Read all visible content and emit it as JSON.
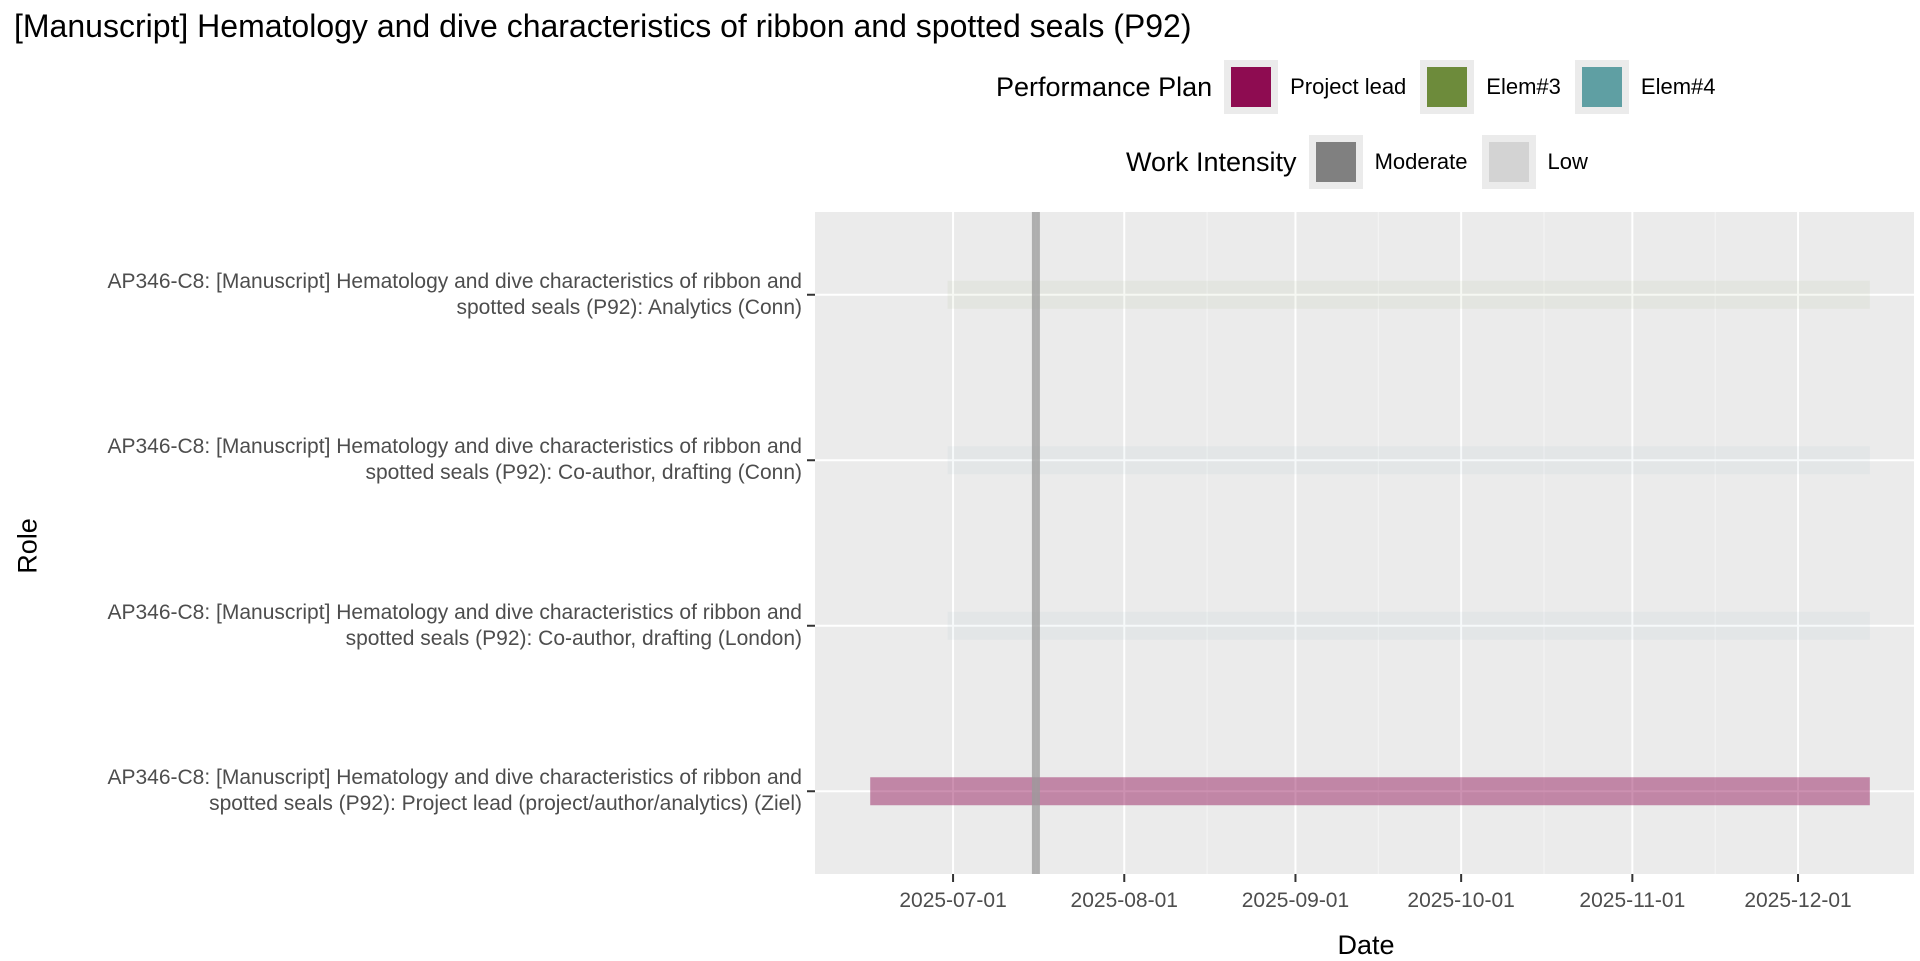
{
  "chart_data": {
    "type": "bar",
    "title": "[Manuscript] Hematology and dive characteristics of ribbon and spotted seals (P92)",
    "xlabel": "Date",
    "ylabel": "Role",
    "x_range": [
      "2025-06-06",
      "2025-12-22"
    ],
    "x_ticks": [
      "2025-07-01",
      "2025-08-01",
      "2025-09-01",
      "2025-10-01",
      "2025-11-01",
      "2025-12-01"
    ],
    "grid": true,
    "reference_line": {
      "date": "2025-07-16",
      "color": "#999999"
    },
    "legends": [
      {
        "title": "Performance Plan",
        "placement": "top",
        "entries": [
          {
            "label": "Project lead",
            "color": "#8e0c51"
          },
          {
            "label": "Elem#3",
            "color": "#6d8b3b"
          },
          {
            "label": "Elem#4",
            "color": "#5f9fa3"
          }
        ]
      },
      {
        "title": "Work Intensity",
        "placement": "top",
        "entries": [
          {
            "label": "Moderate",
            "color": "#808080"
          },
          {
            "label": "Low",
            "color": "#d3d3d3"
          }
        ]
      }
    ],
    "series": [
      {
        "label_lines": [
          "AP346-C8: [Manuscript] Hematology and dive characteristics of ribbon and",
          "spotted seals (P92): Analytics (Conn)"
        ],
        "start": "2025-06-30",
        "end": "2025-12-14",
        "plan": "Elem#3",
        "intensity": "Low",
        "color": "#6d8b3b",
        "opacity": 0.06
      },
      {
        "label_lines": [
          "AP346-C8: [Manuscript] Hematology and dive characteristics of ribbon and",
          "spotted seals (P92): Co-author, drafting (Conn)"
        ],
        "start": "2025-06-30",
        "end": "2025-12-14",
        "plan": "Elem#4",
        "intensity": "Low",
        "color": "#5f9fa3",
        "opacity": 0.06
      },
      {
        "label_lines": [
          "AP346-C8: [Manuscript] Hematology and dive characteristics of ribbon and",
          "spotted seals (P92): Co-author, drafting (London)"
        ],
        "start": "2025-06-30",
        "end": "2025-12-14",
        "plan": "Elem#4",
        "intensity": "Low",
        "color": "#5f9fa3",
        "opacity": 0.06
      },
      {
        "label_lines": [
          "AP346-C8: [Manuscript] Hematology and dive characteristics of ribbon and",
          "spotted seals (P92): Project lead (project/author/analytics) (Ziel)"
        ],
        "start": "2025-06-16",
        "end": "2025-12-14",
        "plan": "Project lead",
        "intensity": "Moderate",
        "color": "#8e0c51",
        "opacity": 0.45
      }
    ]
  }
}
